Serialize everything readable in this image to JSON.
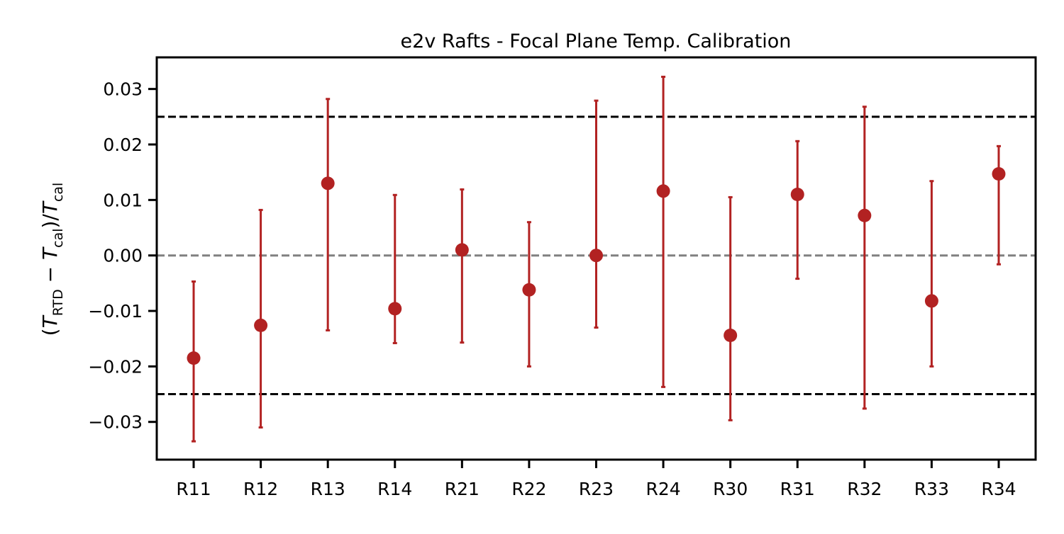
{
  "chart_data": {
    "type": "scatter",
    "title": "e2v Rafts - Focal Plane Temp. Calibration",
    "xlabel": "",
    "ylabel": {
      "open": "(",
      "T1": "T",
      "sub1": "RTD",
      "minus": " − ",
      "T2": "T",
      "sub2": "cal",
      "close": ")/",
      "T3": "T",
      "sub3": "cal"
    },
    "categories": [
      "R11",
      "R12",
      "R13",
      "R14",
      "R21",
      "R22",
      "R23",
      "R24",
      "R30",
      "R31",
      "R32",
      "R33",
      "R34"
    ],
    "series": [
      {
        "values": [
          -0.0185,
          -0.0126,
          0.013,
          -0.0096,
          0.001,
          -0.0062,
          0.0,
          0.0116,
          -0.0144,
          0.011,
          0.0072,
          -0.0082,
          0.0147
        ],
        "err_low": [
          -0.0335,
          -0.031,
          -0.0135,
          -0.0158,
          -0.0157,
          -0.02,
          -0.013,
          -0.0237,
          -0.0297,
          -0.0042,
          -0.0276,
          -0.02,
          -0.0016
        ],
        "err_high": [
          -0.0047,
          0.0082,
          0.0282,
          0.0109,
          0.0119,
          0.006,
          0.0279,
          0.0322,
          0.0105,
          0.0206,
          0.0268,
          0.0134,
          0.0197
        ]
      }
    ],
    "reference_lines": [
      {
        "y": 0.025,
        "style": "dashed",
        "color": "#000000"
      },
      {
        "y": 0.0,
        "style": "dashed",
        "color": "#808080"
      },
      {
        "y": -0.025,
        "style": "dashed",
        "color": "#000000"
      }
    ],
    "yticks": [
      -0.03,
      -0.02,
      -0.01,
      0.0,
      0.01,
      0.02,
      0.03
    ],
    "ytick_labels": [
      "−0.03",
      "−0.02",
      "−0.01",
      "0.00",
      "0.01",
      "0.02",
      "0.03"
    ],
    "ylim": [
      -0.0368,
      0.0357
    ],
    "grid": false,
    "legend": "none",
    "colors": {
      "marker": "#b22222",
      "errorbar": "#b22222",
      "frame": "#000000"
    }
  }
}
